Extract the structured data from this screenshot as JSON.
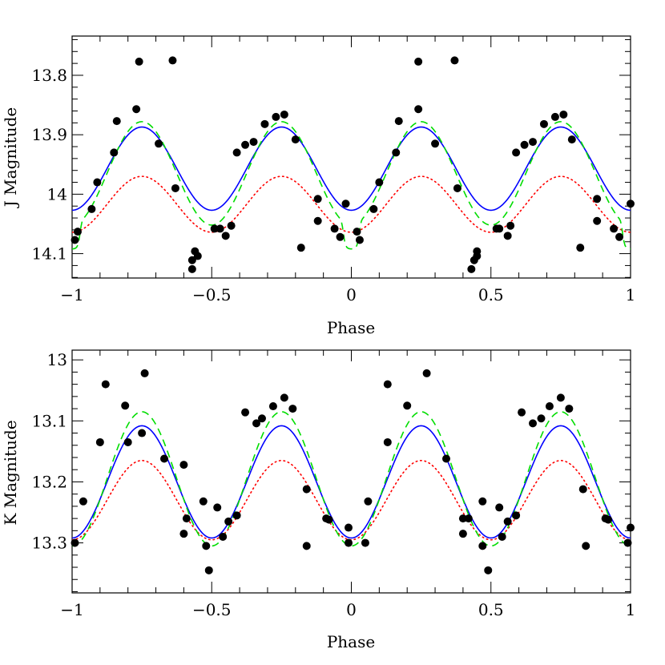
{
  "chart_data": [
    {
      "type": "scatter",
      "id": "top",
      "xlabel": "Phase",
      "ylabel": "J Magnitude",
      "xlim": [
        -1,
        1
      ],
      "ylim": [
        14.141,
        13.734
      ],
      "y_inverted": true,
      "xticks": [
        -1,
        -0.5,
        0,
        0.5,
        1
      ],
      "xtick_labels": [
        "−1",
        "−0.5",
        "0",
        "0.5",
        "1"
      ],
      "yticks": [
        13.8,
        13.9,
        14,
        14.1
      ],
      "ytick_labels": [
        "13.8",
        "13.9",
        "14",
        "14.1"
      ],
      "xminor": 0.1,
      "yminor": 0.02,
      "grid": false,
      "model_curves": [
        {
          "style": "solid",
          "color": "#0000ff",
          "mean": 13.957,
          "amplitude": 0.07,
          "phase_center": 0.25,
          "min_phase_offset": 0.0
        },
        {
          "style": "dotted",
          "color": "#ff0000",
          "mean": 14.017,
          "amplitude": 0.047,
          "phase_center": 0.25,
          "min_phase_offset": 0.0
        },
        {
          "style": "dashed",
          "color": "#00dd00",
          "mean": 13.965,
          "amplitude": 0.087,
          "phase_center": 0.25,
          "eclipse_depth": 0.04
        }
      ],
      "points": [
        {
          "x": -0.99,
          "y": 14.077
        },
        {
          "x": -0.98,
          "y": 14.063
        },
        {
          "x": -0.93,
          "y": 14.025
        },
        {
          "x": -0.91,
          "y": 13.98
        },
        {
          "x": -0.85,
          "y": 13.93
        },
        {
          "x": -0.84,
          "y": 13.877
        },
        {
          "x": -0.77,
          "y": 13.857
        },
        {
          "x": -0.76,
          "y": 13.777
        },
        {
          "x": -0.69,
          "y": 13.915
        },
        {
          "x": -0.64,
          "y": 13.775
        },
        {
          "x": -0.63,
          "y": 13.99
        },
        {
          "x": -0.57,
          "y": 14.111
        },
        {
          "x": -0.56,
          "y": 14.096
        },
        {
          "x": -0.55,
          "y": 14.104
        },
        {
          "x": -0.57,
          "y": 14.126
        },
        {
          "x": -0.49,
          "y": 14.058
        },
        {
          "x": -0.47,
          "y": 14.058
        },
        {
          "x": -0.45,
          "y": 14.07
        },
        {
          "x": -0.43,
          "y": 14.053
        },
        {
          "x": -0.41,
          "y": 13.93
        },
        {
          "x": -0.38,
          "y": 13.917
        },
        {
          "x": -0.35,
          "y": 13.912
        },
        {
          "x": -0.31,
          "y": 13.882
        },
        {
          "x": -0.27,
          "y": 13.87
        },
        {
          "x": -0.24,
          "y": 13.866
        },
        {
          "x": -0.2,
          "y": 13.908
        },
        {
          "x": -0.18,
          "y": 14.09
        },
        {
          "x": -0.12,
          "y": 14.008
        },
        {
          "x": -0.12,
          "y": 14.045
        },
        {
          "x": -0.06,
          "y": 14.058
        },
        {
          "x": -0.04,
          "y": 14.072
        },
        {
          "x": -0.02,
          "y": 14.016
        },
        {
          "x": 0.02,
          "y": 14.063
        },
        {
          "x": 0.03,
          "y": 14.077
        },
        {
          "x": 0.08,
          "y": 14.025
        },
        {
          "x": 0.1,
          "y": 13.98
        },
        {
          "x": 0.16,
          "y": 13.93
        },
        {
          "x": 0.17,
          "y": 13.877
        },
        {
          "x": 0.24,
          "y": 13.857
        },
        {
          "x": 0.24,
          "y": 13.777
        },
        {
          "x": 0.3,
          "y": 13.915
        },
        {
          "x": 0.37,
          "y": 13.775
        },
        {
          "x": 0.38,
          "y": 13.99
        },
        {
          "x": 0.44,
          "y": 14.111
        },
        {
          "x": 0.45,
          "y": 14.096
        },
        {
          "x": 0.45,
          "y": 14.104
        },
        {
          "x": 0.43,
          "y": 14.126
        },
        {
          "x": 0.52,
          "y": 14.058
        },
        {
          "x": 0.53,
          "y": 14.058
        },
        {
          "x": 0.56,
          "y": 14.07
        },
        {
          "x": 0.57,
          "y": 14.053
        },
        {
          "x": 0.59,
          "y": 13.93
        },
        {
          "x": 0.62,
          "y": 13.917
        },
        {
          "x": 0.65,
          "y": 13.912
        },
        {
          "x": 0.69,
          "y": 13.882
        },
        {
          "x": 0.73,
          "y": 13.87
        },
        {
          "x": 0.76,
          "y": 13.866
        },
        {
          "x": 0.79,
          "y": 13.908
        },
        {
          "x": 0.82,
          "y": 14.09
        },
        {
          "x": 0.88,
          "y": 14.008
        },
        {
          "x": 0.88,
          "y": 14.045
        },
        {
          "x": 0.94,
          "y": 14.058
        },
        {
          "x": 0.96,
          "y": 14.072
        },
        {
          "x": 1.0,
          "y": 14.016
        }
      ]
    },
    {
      "type": "scatter",
      "id": "bottom",
      "xlabel": "Phase",
      "ylabel": "K Magnitude",
      "xlim": [
        -1,
        1
      ],
      "ylim": [
        13.382,
        12.984
      ],
      "y_inverted": true,
      "xticks": [
        -1,
        -0.5,
        0,
        0.5,
        1
      ],
      "xtick_labels": [
        "−1",
        "−0.5",
        "0",
        "0.5",
        "1"
      ],
      "yticks": [
        13.0,
        13.1,
        13.2,
        13.3
      ],
      "ytick_labels": [
        "13",
        "13.1",
        "13.2",
        "13.3"
      ],
      "xminor": 0.1,
      "yminor": 0.02,
      "grid": false,
      "model_curves": [
        {
          "style": "solid",
          "color": "#0000ff",
          "mean": 13.2,
          "amplitude": 0.092,
          "phase_center": 0.25,
          "min_shift": 0.0
        },
        {
          "style": "dotted",
          "color": "#ff0000",
          "mean": 13.23,
          "amplitude": 0.065,
          "phase_center": 0.25
        },
        {
          "style": "dashed",
          "color": "#00dd00",
          "mean": 13.195,
          "amplitude": 0.11,
          "phase_center": 0.25
        }
      ],
      "points": [
        {
          "x": -0.99,
          "y": 13.3
        },
        {
          "x": -0.96,
          "y": 13.232
        },
        {
          "x": -0.9,
          "y": 13.135
        },
        {
          "x": -0.88,
          "y": 13.04
        },
        {
          "x": -0.81,
          "y": 13.075
        },
        {
          "x": -0.8,
          "y": 13.135
        },
        {
          "x": -0.75,
          "y": 13.12
        },
        {
          "x": -0.74,
          "y": 13.022
        },
        {
          "x": -0.67,
          "y": 13.162
        },
        {
          "x": -0.6,
          "y": 13.172
        },
        {
          "x": -0.59,
          "y": 13.26
        },
        {
          "x": -0.6,
          "y": 13.285
        },
        {
          "x": -0.53,
          "y": 13.232
        },
        {
          "x": -0.52,
          "y": 13.305
        },
        {
          "x": -0.51,
          "y": 13.345
        },
        {
          "x": -0.48,
          "y": 13.242
        },
        {
          "x": -0.46,
          "y": 13.29
        },
        {
          "x": -0.44,
          "y": 13.265
        },
        {
          "x": -0.41,
          "y": 13.255
        },
        {
          "x": -0.38,
          "y": 13.086
        },
        {
          "x": -0.34,
          "y": 13.104
        },
        {
          "x": -0.32,
          "y": 13.096
        },
        {
          "x": -0.28,
          "y": 13.076
        },
        {
          "x": -0.24,
          "y": 13.062
        },
        {
          "x": -0.21,
          "y": 13.08
        },
        {
          "x": -0.16,
          "y": 13.212
        },
        {
          "x": -0.16,
          "y": 13.305
        },
        {
          "x": -0.09,
          "y": 13.26
        },
        {
          "x": -0.08,
          "y": 13.262
        },
        {
          "x": -0.01,
          "y": 13.275
        },
        {
          "x": -0.01,
          "y": 13.3
        },
        {
          "x": 0.05,
          "y": 13.3
        },
        {
          "x": 0.06,
          "y": 13.232
        },
        {
          "x": 0.13,
          "y": 13.04
        },
        {
          "x": 0.13,
          "y": 13.135
        },
        {
          "x": 0.2,
          "y": 13.075
        },
        {
          "x": 0.27,
          "y": 13.022
        },
        {
          "x": 0.34,
          "y": 13.162
        },
        {
          "x": 0.4,
          "y": 13.26
        },
        {
          "x": 0.4,
          "y": 13.285
        },
        {
          "x": 0.42,
          "y": 13.26
        },
        {
          "x": 0.47,
          "y": 13.232
        },
        {
          "x": 0.47,
          "y": 13.305
        },
        {
          "x": 0.49,
          "y": 13.345
        },
        {
          "x": 0.53,
          "y": 13.242
        },
        {
          "x": 0.54,
          "y": 13.29
        },
        {
          "x": 0.56,
          "y": 13.265
        },
        {
          "x": 0.59,
          "y": 13.255
        },
        {
          "x": 0.61,
          "y": 13.086
        },
        {
          "x": 0.65,
          "y": 13.104
        },
        {
          "x": 0.68,
          "y": 13.096
        },
        {
          "x": 0.71,
          "y": 13.076
        },
        {
          "x": 0.75,
          "y": 13.062
        },
        {
          "x": 0.78,
          "y": 13.08
        },
        {
          "x": 0.83,
          "y": 13.212
        },
        {
          "x": 0.84,
          "y": 13.305
        },
        {
          "x": 0.91,
          "y": 13.26
        },
        {
          "x": 0.92,
          "y": 13.262
        },
        {
          "x": 0.99,
          "y": 13.3
        },
        {
          "x": 1.0,
          "y": 13.275
        }
      ]
    }
  ]
}
